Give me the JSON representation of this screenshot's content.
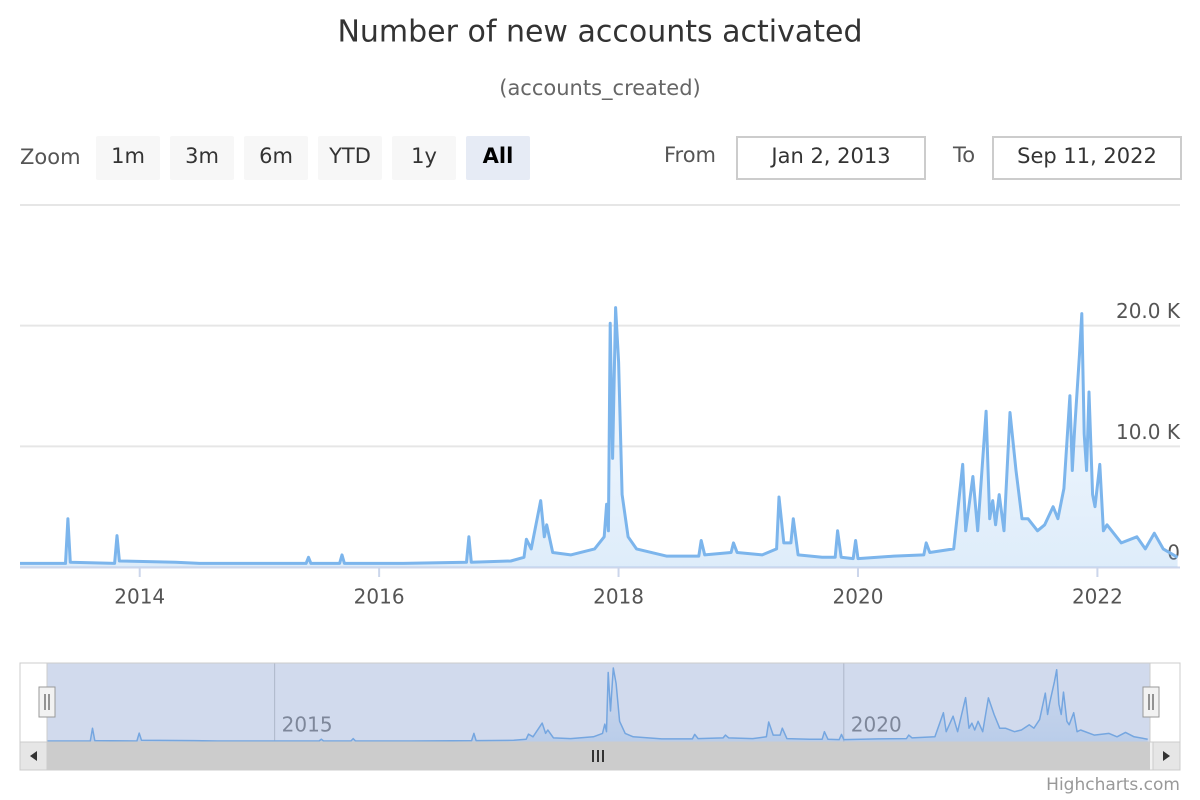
{
  "chart_data": {
    "type": "area",
    "title": "Number of new accounts activated",
    "subtitle": "(accounts_created)",
    "range_selector": {
      "label": "Zoom",
      "buttons": [
        "1m",
        "3m",
        "6m",
        "YTD",
        "1y",
        "All"
      ],
      "selected": 5,
      "from_label": "From",
      "from": "Jan 2, 2013",
      "to_label": "To",
      "to": "Sep 11, 2022"
    },
    "x": [
      2013.0,
      2013.38,
      2013.4,
      2013.42,
      2013.79,
      2013.81,
      2013.83,
      2014.3,
      2014.5,
      2015.0,
      2015.39,
      2015.41,
      2015.43,
      2015.67,
      2015.69,
      2015.71,
      2016.2,
      2016.73,
      2016.75,
      2016.77,
      2017.1,
      2017.21,
      2017.23,
      2017.27,
      2017.35,
      2017.38,
      2017.4,
      2017.45,
      2017.6,
      2017.8,
      2017.88,
      2017.9,
      2017.915,
      2017.93,
      2017.95,
      2017.975,
      2018.0,
      2018.03,
      2018.08,
      2018.15,
      2018.4,
      2018.67,
      2018.69,
      2018.72,
      2018.94,
      2018.96,
      2018.99,
      2019.2,
      2019.32,
      2019.34,
      2019.38,
      2019.44,
      2019.46,
      2019.5,
      2019.7,
      2019.81,
      2019.83,
      2019.86,
      2019.96,
      2019.98,
      2020.0,
      2020.3,
      2020.55,
      2020.57,
      2020.6,
      2020.8,
      2020.875,
      2020.9,
      2020.96,
      2021.0,
      2021.07,
      2021.1,
      2021.125,
      2021.15,
      2021.18,
      2021.22,
      2021.27,
      2021.32,
      2021.37,
      2021.42,
      2021.5,
      2021.56,
      2021.63,
      2021.67,
      2021.72,
      2021.77,
      2021.79,
      2021.81,
      2021.85,
      2021.87,
      2021.89,
      2021.91,
      2021.93,
      2021.96,
      2021.98,
      2022.02,
      2022.05,
      2022.08,
      2022.2,
      2022.33,
      2022.4,
      2022.475,
      2022.55,
      2022.67
    ],
    "series": [
      {
        "name": "accounts_created",
        "color": "#7cb5ec",
        "values": [
          300,
          300,
          4000,
          400,
          300,
          2600,
          500,
          400,
          300,
          300,
          300,
          800,
          300,
          300,
          1000,
          300,
          300,
          400,
          2500,
          400,
          500,
          800,
          2300,
          1500,
          5500,
          2500,
          3500,
          1200,
          1000,
          1500,
          2500,
          5200,
          3000,
          20200,
          9000,
          21500,
          17000,
          6000,
          2500,
          1500,
          900,
          900,
          2200,
          1000,
          1200,
          2000,
          1200,
          1000,
          1500,
          5800,
          2000,
          2000,
          4000,
          1000,
          800,
          800,
          3000,
          800,
          700,
          2200,
          700,
          900,
          1000,
          2000,
          1200,
          1500,
          8500,
          3000,
          7500,
          3000,
          12900,
          4000,
          5500,
          3500,
          6000,
          3000,
          12800,
          8000,
          4000,
          4000,
          3000,
          3500,
          5000,
          4000,
          6500,
          14200,
          8000,
          11500,
          17500,
          21000,
          11000,
          8000,
          14500,
          6000,
          5000,
          8500,
          3000,
          3500,
          2000,
          2500,
          1500,
          2800,
          1500,
          800
        ]
      }
    ],
    "xlim": [
      2013.0,
      2022.69
    ],
    "xticks": [
      2014,
      2016,
      2018,
      2020,
      2022
    ],
    "ylim": [
      0,
      30000
    ],
    "yticks": [
      0,
      {
        "value": 10000,
        "label": "10.0 K"
      },
      {
        "value": 20000,
        "label": "20.0 K"
      }
    ],
    "grid": true,
    "navigator": {
      "xticks": [
        2015,
        2020
      ]
    },
    "credits": "Highcharts.com"
  }
}
